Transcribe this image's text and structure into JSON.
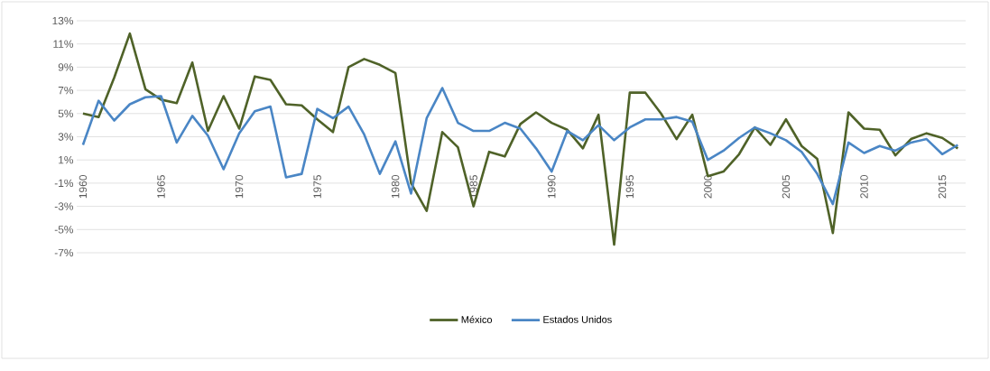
{
  "chart_data": {
    "type": "line",
    "x": [
      1960,
      1961,
      1962,
      1963,
      1964,
      1965,
      1966,
      1967,
      1968,
      1969,
      1970,
      1971,
      1972,
      1973,
      1974,
      1975,
      1976,
      1977,
      1978,
      1979,
      1980,
      1981,
      1982,
      1983,
      1984,
      1985,
      1986,
      1987,
      1988,
      1989,
      1990,
      1991,
      1992,
      1993,
      1994,
      1995,
      1996,
      1997,
      1998,
      1999,
      2000,
      2001,
      2002,
      2003,
      2004,
      2005,
      2006,
      2007,
      2008,
      2009,
      2010,
      2011,
      2012,
      2013,
      2014,
      2015,
      2016
    ],
    "series": [
      {
        "name": "México",
        "color": "#4f6228",
        "values": [
          5.0,
          4.7,
          8.1,
          11.9,
          7.1,
          6.2,
          5.9,
          9.4,
          3.5,
          6.5,
          3.7,
          8.2,
          7.9,
          5.8,
          5.7,
          4.5,
          3.4,
          9.0,
          9.7,
          9.2,
          8.5,
          -1.0,
          -3.4,
          3.4,
          2.1,
          -3.0,
          1.7,
          1.3,
          4.1,
          5.1,
          4.2,
          3.6,
          2.0,
          4.9,
          -6.3,
          6.8,
          6.8,
          5.0,
          2.8,
          4.9,
          -0.4,
          0.0,
          1.5,
          3.8,
          2.3,
          4.5,
          2.2,
          1.1,
          -5.3,
          5.1,
          3.7,
          3.6,
          1.4,
          2.8,
          3.3,
          2.9,
          2.0
        ]
      },
      {
        "name": "Estados Unidos",
        "color": "#4a86c5",
        "values": [
          2.3,
          6.1,
          4.4,
          5.8,
          6.4,
          6.5,
          2.5,
          4.8,
          3.1,
          0.2,
          3.3,
          5.2,
          5.6,
          -0.5,
          -0.2,
          5.4,
          4.6,
          5.6,
          3.2,
          -0.2,
          2.6,
          -1.9,
          4.6,
          7.2,
          4.2,
          3.5,
          3.5,
          4.2,
          3.7,
          2.0,
          0.0,
          3.5,
          2.7,
          4.0,
          2.7,
          3.8,
          4.5,
          4.5,
          4.7,
          4.3,
          1.0,
          1.8,
          2.9,
          3.8,
          3.3,
          2.7,
          1.7,
          -0.2,
          -2.8,
          2.5,
          1.6,
          2.2,
          1.8,
          2.5,
          2.8,
          1.5,
          2.3
        ]
      }
    ],
    "xlim": [
      1959.6,
      2016.5
    ],
    "xticks": [
      1960,
      1965,
      1970,
      1975,
      1980,
      1985,
      1990,
      1995,
      2000,
      2005,
      2010,
      2015
    ],
    "ylim": [
      -7,
      13
    ],
    "yticks": [
      {
        "value": -7,
        "label": "-7%"
      },
      {
        "value": -5,
        "label": "-5%"
      },
      {
        "value": -3,
        "label": "-3%"
      },
      {
        "value": -1,
        "label": "-1%"
      },
      {
        "value": 1,
        "label": "1%"
      },
      {
        "value": 3,
        "label": "3%"
      },
      {
        "value": 5,
        "label": "5%"
      },
      {
        "value": 7,
        "label": "7%"
      },
      {
        "value": 9,
        "label": "9%"
      },
      {
        "value": 11,
        "label": "11%"
      },
      {
        "value": 13,
        "label": "13%"
      }
    ],
    "grid": "y",
    "legend": "bottom",
    "marker": "none",
    "line_style": "solid"
  }
}
